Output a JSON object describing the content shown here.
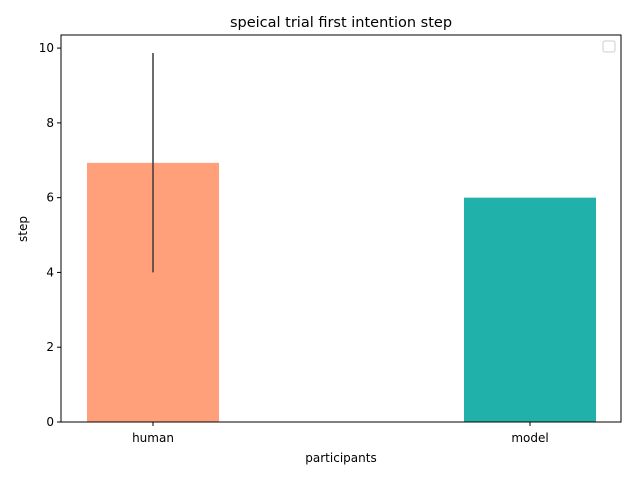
{
  "chart_data": {
    "type": "bar",
    "title": "speical trial first intention step",
    "xlabel": "participants",
    "ylabel": "step",
    "categories": [
      "human",
      "model"
    ],
    "values": [
      6.93,
      6.0
    ],
    "error_bars": [
      {
        "category": "human",
        "low": 4.0,
        "high": 9.87
      },
      {
        "category": "model",
        "low": null,
        "high": null
      }
    ],
    "colors": [
      "#FFA07A",
      "#20B2AA"
    ],
    "errorbar_color": "#3b3b3b",
    "ylim": [
      0,
      10.35
    ],
    "yticks": [
      0,
      2,
      4,
      6,
      8,
      10
    ],
    "grid": false,
    "legend": {
      "placement": "top-right",
      "entries": []
    }
  }
}
